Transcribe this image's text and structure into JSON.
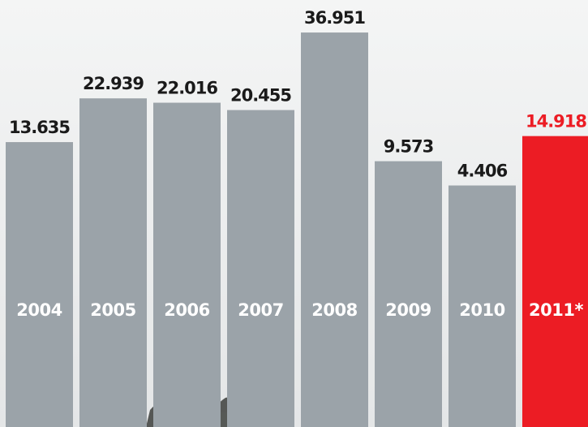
{
  "chart_data": {
    "type": "bar",
    "categories": [
      "2004",
      "2005",
      "2006",
      "2007",
      "2008",
      "2009",
      "2010",
      "2011*"
    ],
    "values": [
      13.635,
      22.939,
      22.016,
      20.455,
      36.951,
      9.573,
      4.406,
      14.918
    ],
    "colors": [
      "#9ba3a9",
      "#9ba3a9",
      "#9ba3a9",
      "#9ba3a9",
      "#9ba3a9",
      "#9ba3a9",
      "#9ba3a9",
      "#ec1c24"
    ]
  }
}
